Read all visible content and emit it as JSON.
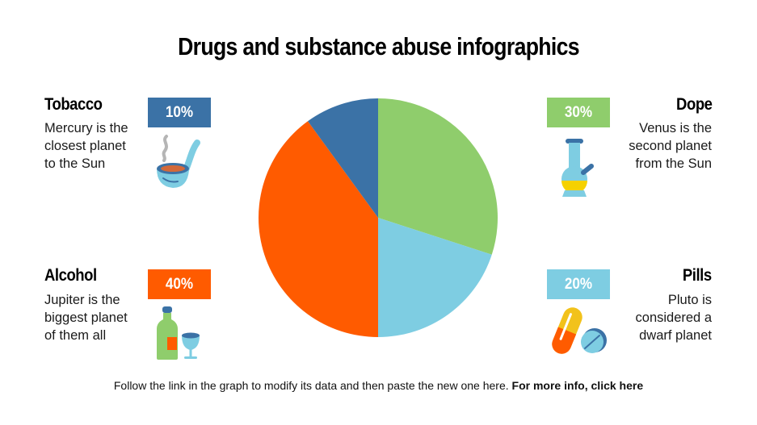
{
  "title": "Drugs and substance abuse infographics",
  "items": {
    "tobacco": {
      "label": "Tobacco",
      "percent": "10%",
      "description_lines": [
        "Mercury is the",
        "closest planet",
        "to the Sun"
      ],
      "color": "#3b72a6",
      "icon": "pipe-icon"
    },
    "dope": {
      "label": "Dope",
      "percent": "30%",
      "description_lines": [
        "Venus is the",
        "second planet",
        "from the Sun"
      ],
      "color": "#8fcd6c",
      "icon": "bong-icon"
    },
    "alcohol": {
      "label": "Alcohol",
      "percent": "40%",
      "description_lines": [
        "Jupiter is the",
        "biggest planet",
        "of them all"
      ],
      "color": "#ff5b00",
      "icon": "bottle-glass-icon"
    },
    "pills": {
      "label": "Pills",
      "percent": "20%",
      "description_lines": [
        "Pluto is",
        "considered a",
        "dwarf planet"
      ],
      "color": "#7ecde2",
      "icon": "pills-icon"
    }
  },
  "footer": {
    "text": "Follow the link in the graph to modify its data and then paste the new one here.",
    "link": "For more info, click here"
  },
  "chart_data": {
    "type": "pie",
    "title": "Drugs and substance abuse infographics",
    "categories": [
      "Dope",
      "Pills",
      "Alcohol",
      "Tobacco"
    ],
    "values": [
      30,
      20,
      40,
      10
    ],
    "colors": [
      "#8fcd6c",
      "#7ecde2",
      "#ff5b00",
      "#3b72a6"
    ],
    "start_angle": "12 o'clock, clockwise",
    "legend": "none (labels placed around chart)"
  }
}
